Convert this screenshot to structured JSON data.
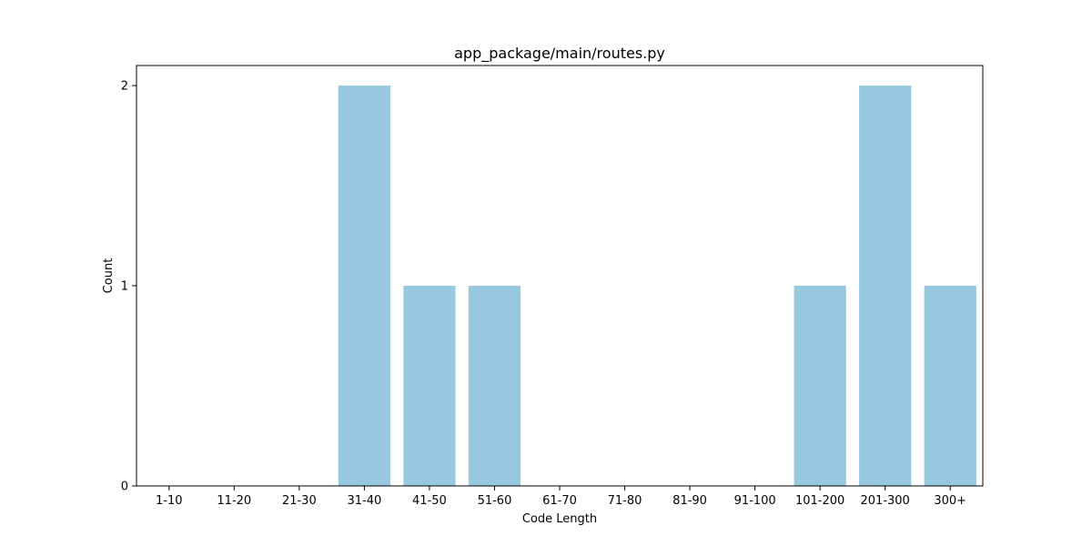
{
  "chart_data": {
    "type": "bar",
    "title": "app_package/main/routes.py",
    "xlabel": "Code Length",
    "ylabel": "Count",
    "categories": [
      "1-10",
      "11-20",
      "21-30",
      "31-40",
      "41-50",
      "51-60",
      "61-70",
      "71-80",
      "81-90",
      "91-100",
      "101-200",
      "201-300",
      "300+"
    ],
    "values": [
      0,
      0,
      0,
      2,
      1,
      1,
      0,
      0,
      0,
      0,
      1,
      2,
      1
    ],
    "ylim": [
      0,
      2.1
    ],
    "yticks": [
      0,
      1,
      2
    ],
    "grid": false,
    "bar_color": "#96c9dd"
  }
}
